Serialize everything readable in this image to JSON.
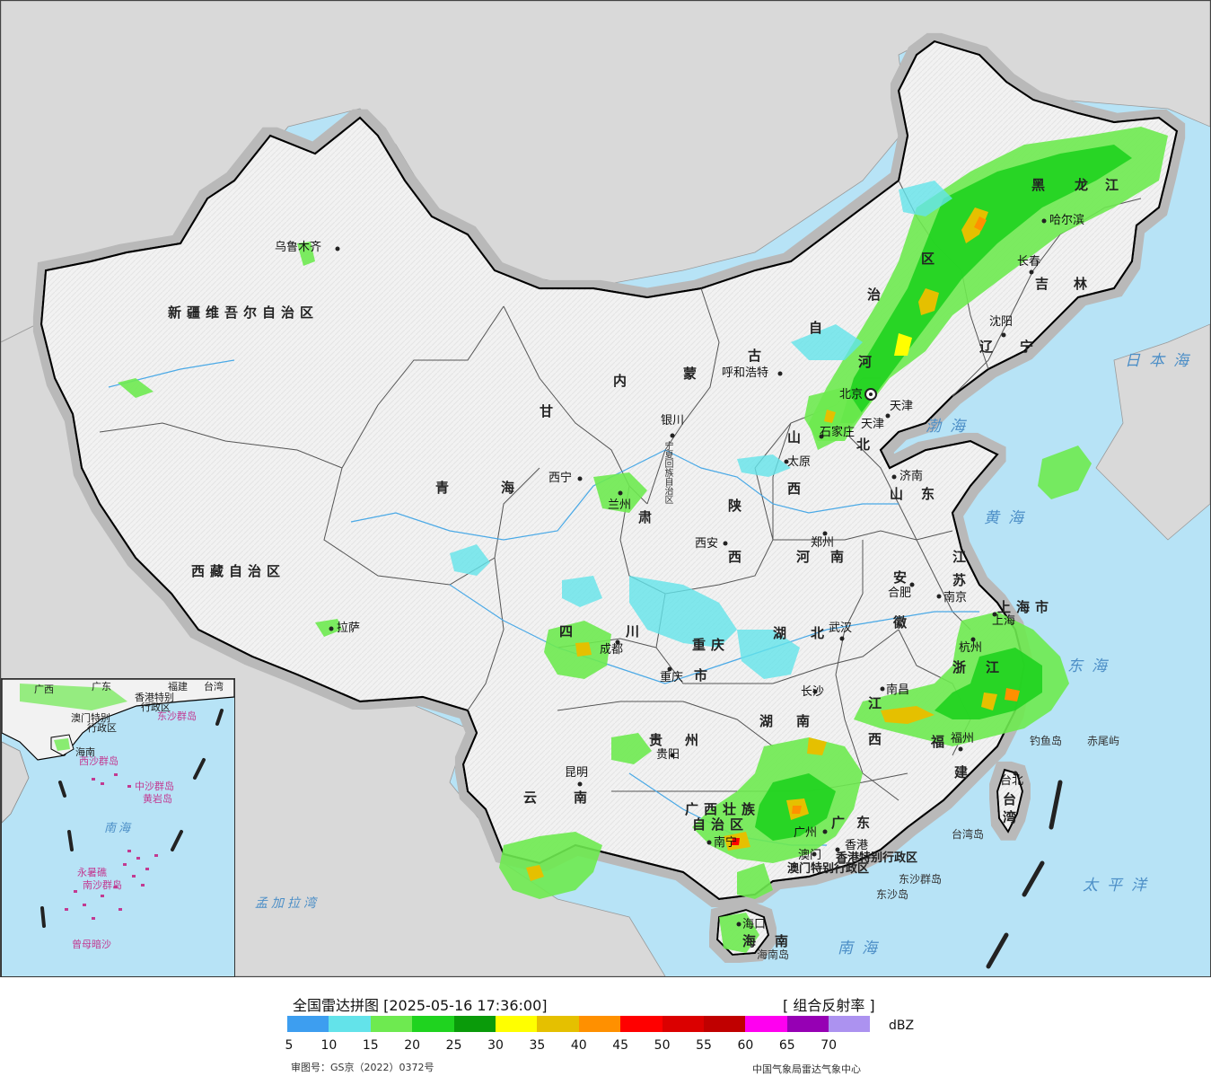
{
  "legend": {
    "title": "全国雷达拼图 [2025-05-16 17:36:00]",
    "product": "[ 组合反射率 ]",
    "unit": "dBZ",
    "colors": [
      "#3d9ef0",
      "#63e3ea",
      "#6eea50",
      "#1fd31f",
      "#0a9b0a",
      "#ffff00",
      "#e5c000",
      "#ff9000",
      "#ff0000",
      "#db0000",
      "#c00000",
      "#ff00f0",
      "#9600b4",
      "#ac92f0"
    ],
    "ticks": [
      "5",
      "10",
      "15",
      "20",
      "25",
      "30",
      "35",
      "40",
      "45",
      "50",
      "55",
      "60",
      "65",
      "70"
    ]
  },
  "footer": {
    "approval_no": "审图号：GS京（2022）0372号",
    "credit": "中国气象局雷达气象中心"
  },
  "map": {
    "regions": [
      {
        "text": "新疆维吾尔自治区"
      },
      {
        "text": "西藏自治区"
      },
      {
        "text": "青"
      },
      {
        "text": "海"
      },
      {
        "text": "甘"
      },
      {
        "text": "肃"
      },
      {
        "text": "内"
      },
      {
        "text": "蒙"
      },
      {
        "text": "古"
      },
      {
        "text": "自"
      },
      {
        "text": "治"
      },
      {
        "text": "区"
      },
      {
        "text": "黑"
      },
      {
        "text": "龙"
      },
      {
        "text": "江"
      },
      {
        "text": "吉"
      },
      {
        "text": "林"
      },
      {
        "text": "辽"
      },
      {
        "text": "宁"
      },
      {
        "text": "河"
      },
      {
        "text": "北"
      },
      {
        "text": "山"
      },
      {
        "text": "西"
      },
      {
        "text": "陕"
      },
      {
        "text": "西"
      },
      {
        "text": "山"
      },
      {
        "text": "东"
      },
      {
        "text": "河"
      },
      {
        "text": "南"
      },
      {
        "text": "江"
      },
      {
        "text": "苏"
      },
      {
        "text": "安"
      },
      {
        "text": "徽"
      },
      {
        "text": "湖"
      },
      {
        "text": "北"
      },
      {
        "text": "四"
      },
      {
        "text": "川"
      },
      {
        "text": "重庆"
      },
      {
        "text": "市"
      },
      {
        "text": "湖"
      },
      {
        "text": "南"
      },
      {
        "text": "江"
      },
      {
        "text": "西"
      },
      {
        "text": "浙"
      },
      {
        "text": "江"
      },
      {
        "text": "福"
      },
      {
        "text": "建"
      },
      {
        "text": "贵"
      },
      {
        "text": "州"
      },
      {
        "text": "云"
      },
      {
        "text": "南"
      },
      {
        "text": "广西壮族"
      },
      {
        "text": "自治区"
      },
      {
        "text": "广"
      },
      {
        "text": "东"
      },
      {
        "text": "海"
      },
      {
        "text": "南"
      },
      {
        "text": "台"
      },
      {
        "text": "湾"
      },
      {
        "text": "上海市"
      },
      {
        "text": "天津"
      },
      {
        "text": "香港特别行政区"
      },
      {
        "text": "澳门特别行政区"
      },
      {
        "text": "宁夏回族自治区"
      }
    ],
    "cities": [
      {
        "text": "乌鲁木齐"
      },
      {
        "text": "拉萨"
      },
      {
        "text": "西宁"
      },
      {
        "text": "兰州"
      },
      {
        "text": "银川"
      },
      {
        "text": "呼和浩特"
      },
      {
        "text": "哈尔滨"
      },
      {
        "text": "长春"
      },
      {
        "text": "沈阳"
      },
      {
        "text": "北京"
      },
      {
        "text": "天津"
      },
      {
        "text": "石家庄"
      },
      {
        "text": "太原"
      },
      {
        "text": "济南"
      },
      {
        "text": "西安"
      },
      {
        "text": "郑州"
      },
      {
        "text": "南京"
      },
      {
        "text": "合肥"
      },
      {
        "text": "上海"
      },
      {
        "text": "杭州"
      },
      {
        "text": "武汉"
      },
      {
        "text": "成都"
      },
      {
        "text": "重庆"
      },
      {
        "text": "长沙"
      },
      {
        "text": "南昌"
      },
      {
        "text": "福州"
      },
      {
        "text": "贵阳"
      },
      {
        "text": "昆明"
      },
      {
        "text": "南宁"
      },
      {
        "text": "广州"
      },
      {
        "text": "香港"
      },
      {
        "text": "澳门"
      },
      {
        "text": "海口"
      },
      {
        "text": "台北"
      }
    ],
    "seas": [
      {
        "text": "日本海"
      },
      {
        "text": "渤海"
      },
      {
        "text": "黄海"
      },
      {
        "text": "东海"
      },
      {
        "text": "南海"
      },
      {
        "text": "太平洋"
      },
      {
        "text": "孟加拉湾"
      }
    ],
    "islands": [
      {
        "text": "钓鱼岛"
      },
      {
        "text": "赤尾屿"
      },
      {
        "text": "台湾岛"
      },
      {
        "text": "东沙群岛"
      },
      {
        "text": "东沙岛"
      },
      {
        "text": "海南岛"
      }
    ],
    "inset_labels": [
      {
        "text": "广西"
      },
      {
        "text": "广东"
      },
      {
        "text": "福建"
      },
      {
        "text": "台湾"
      },
      {
        "text": "香港特别"
      },
      {
        "text": "行政区"
      },
      {
        "text": "澳门特别"
      },
      {
        "text": "行政区"
      },
      {
        "text": "东沙群岛"
      },
      {
        "text": "海南"
      },
      {
        "text": "西沙群岛"
      },
      {
        "text": "中沙群岛"
      },
      {
        "text": "黄岩岛"
      },
      {
        "text": "南海"
      },
      {
        "text": "永暑礁"
      },
      {
        "text": "南沙群岛"
      },
      {
        "text": "曾母暗沙"
      }
    ]
  }
}
